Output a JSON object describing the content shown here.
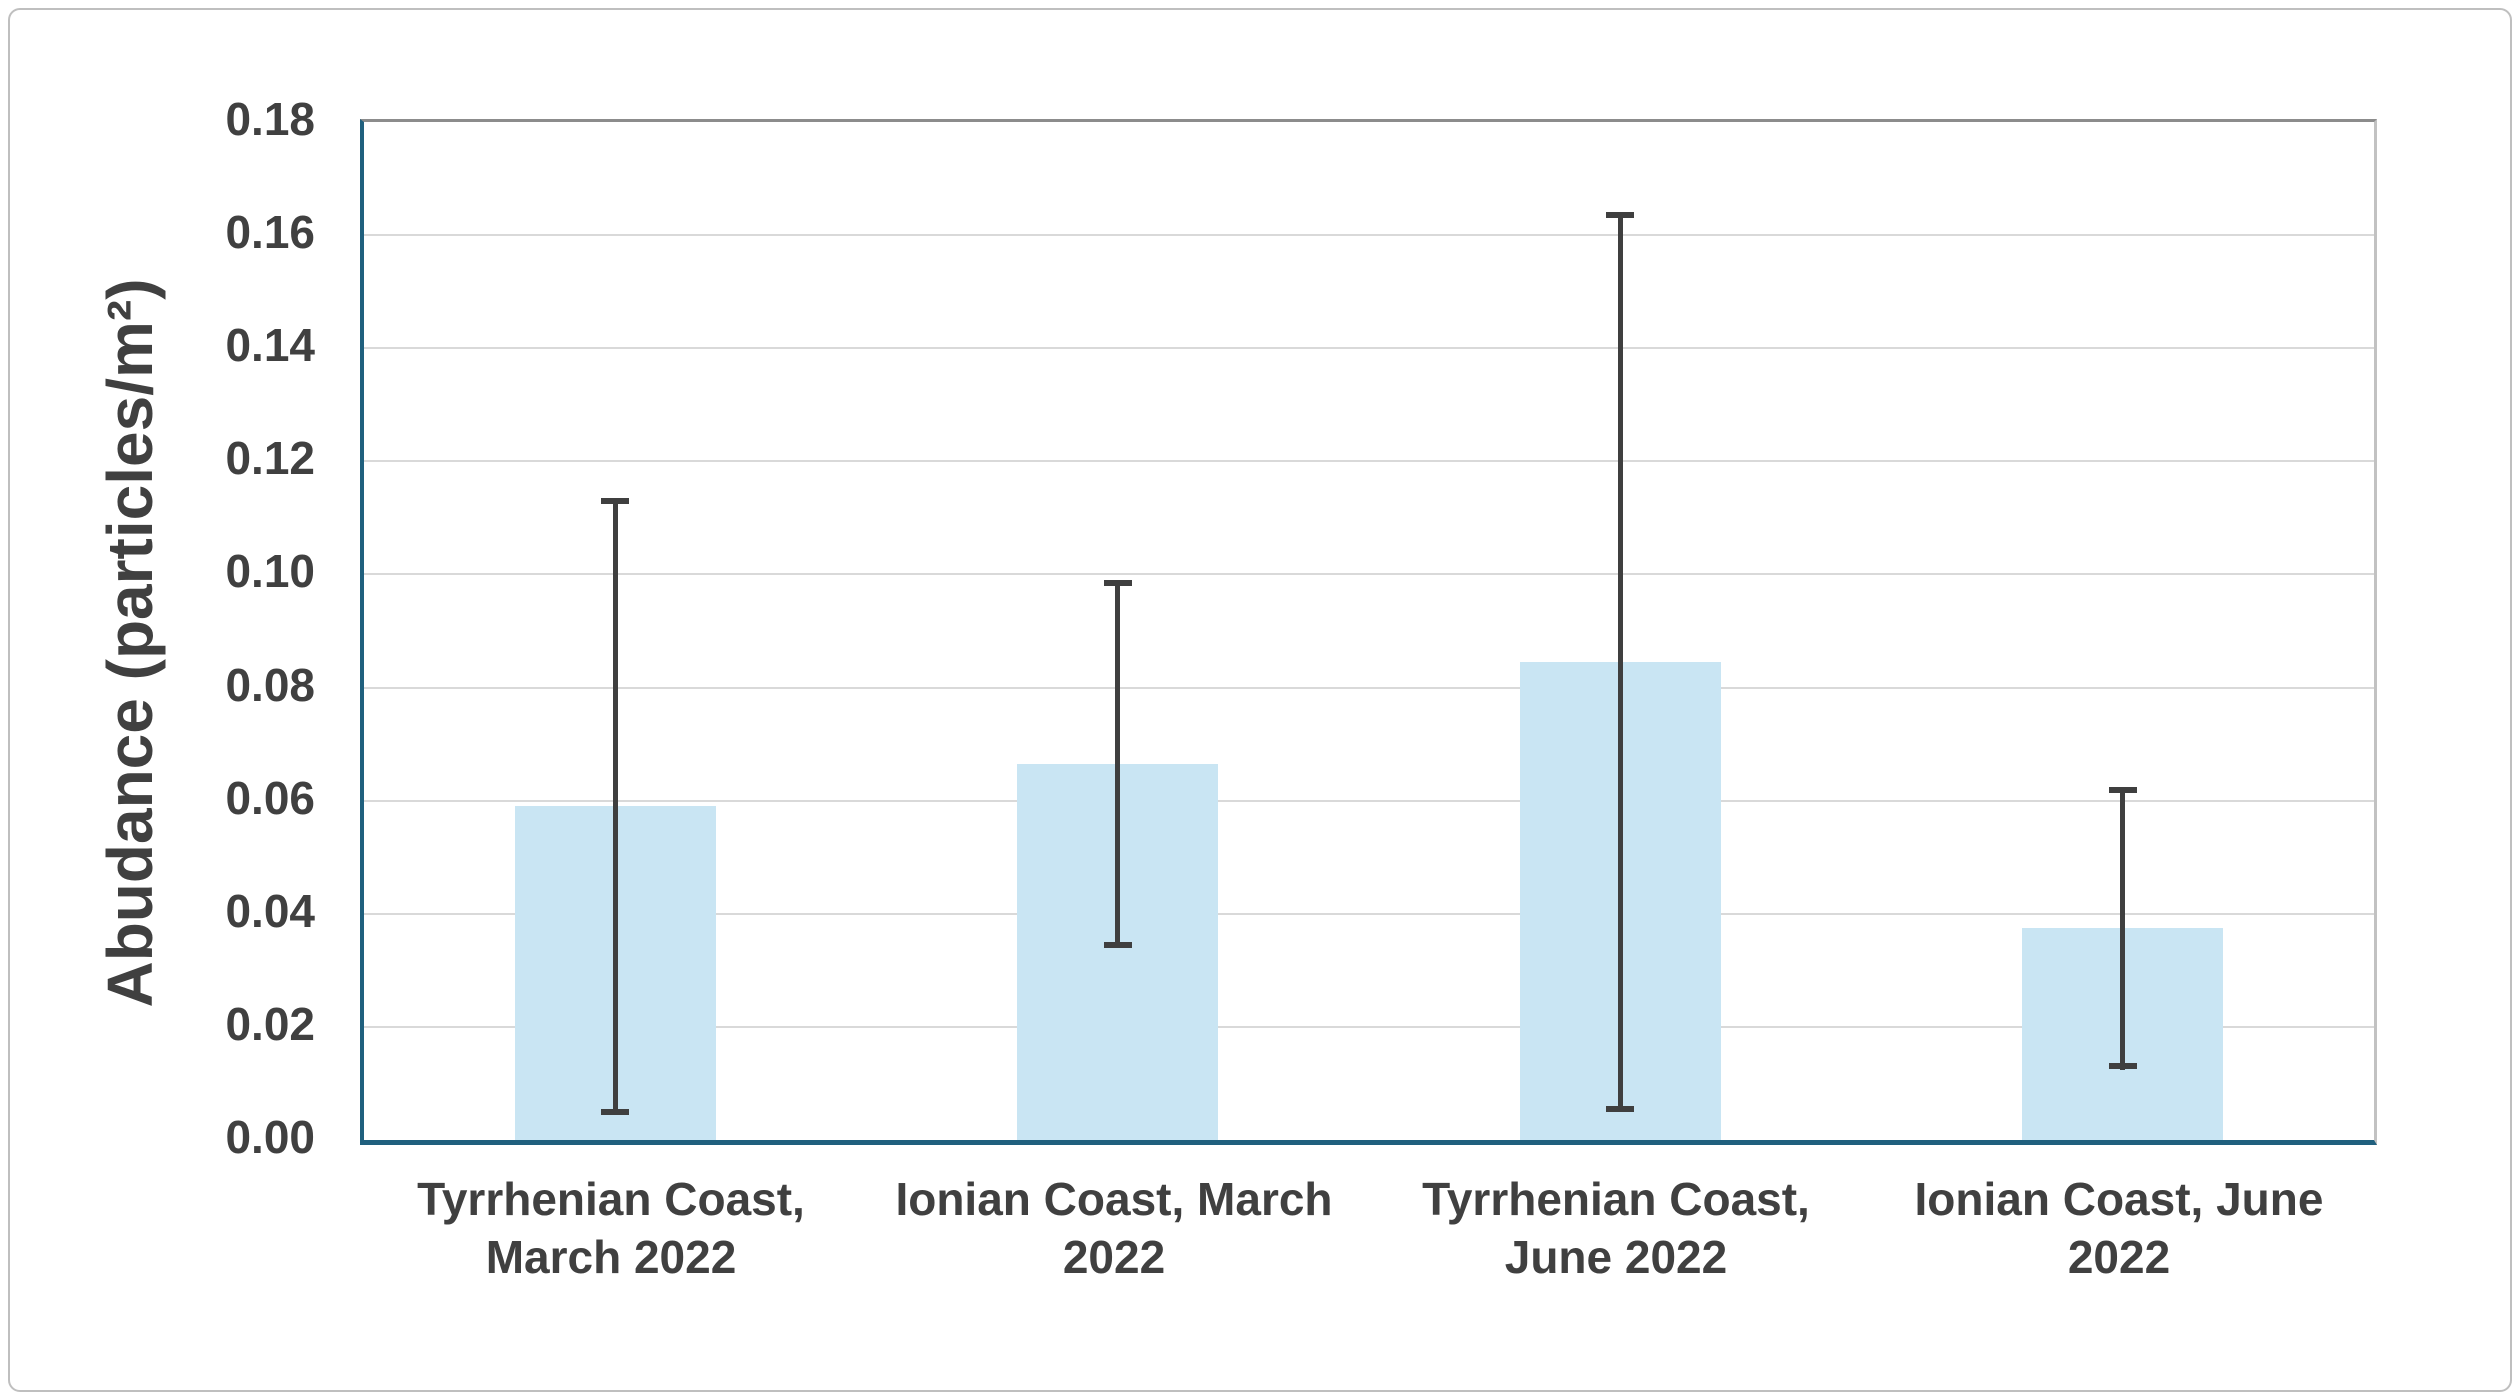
{
  "figure": {
    "background_color": "#FFFFFF",
    "frame_color": "#BFBFBF"
  },
  "chart_data": {
    "type": "bar",
    "title": "",
    "xlabel": "",
    "ylabel": "Abudance (particles/m²)",
    "ylim": [
      0,
      0.18
    ],
    "ytick_step": 0.02,
    "ytick_labels": [
      "0.00",
      "0.02",
      "0.04",
      "0.06",
      "0.08",
      "0.10",
      "0.12",
      "0.14",
      "0.16",
      "0.18"
    ],
    "grid": true,
    "legend": "none",
    "categories": [
      "Tyrrhenian Coast, March 2022",
      "Ionian Coast, March 2022",
      "Tyrrhenian Coast, June 2022",
      "Ionian Coast, June 2022"
    ],
    "categories_wrapped": [
      [
        "Tyrrhenian Coast,",
        "March 2022"
      ],
      [
        "Ionian Coast, March",
        "2022"
      ],
      [
        "Tyrrhenian Coast,",
        "June 2022"
      ],
      [
        "Ionian Coast, June",
        "2022"
      ]
    ],
    "values": [
      0.059,
      0.0665,
      0.0845,
      0.0375
    ],
    "error_plus": [
      0.0545,
      0.0325,
      0.0795,
      0.025
    ],
    "error_minus": [
      0.0545,
      0.0325,
      0.0795,
      0.025
    ],
    "error_bar_tops": [
      0.1135,
      0.099,
      0.164,
      0.0625
    ],
    "error_bar_bottoms": [
      0.0045,
      0.034,
      0.005,
      0.0125
    ],
    "bar_color": "#C9E5F3",
    "error_color": "#3F3F3F",
    "axis_line_color": "#20607E",
    "top_border_color": "#8C8C8C",
    "gridline_color": "#D9D9D9",
    "text_color": "#404040"
  }
}
